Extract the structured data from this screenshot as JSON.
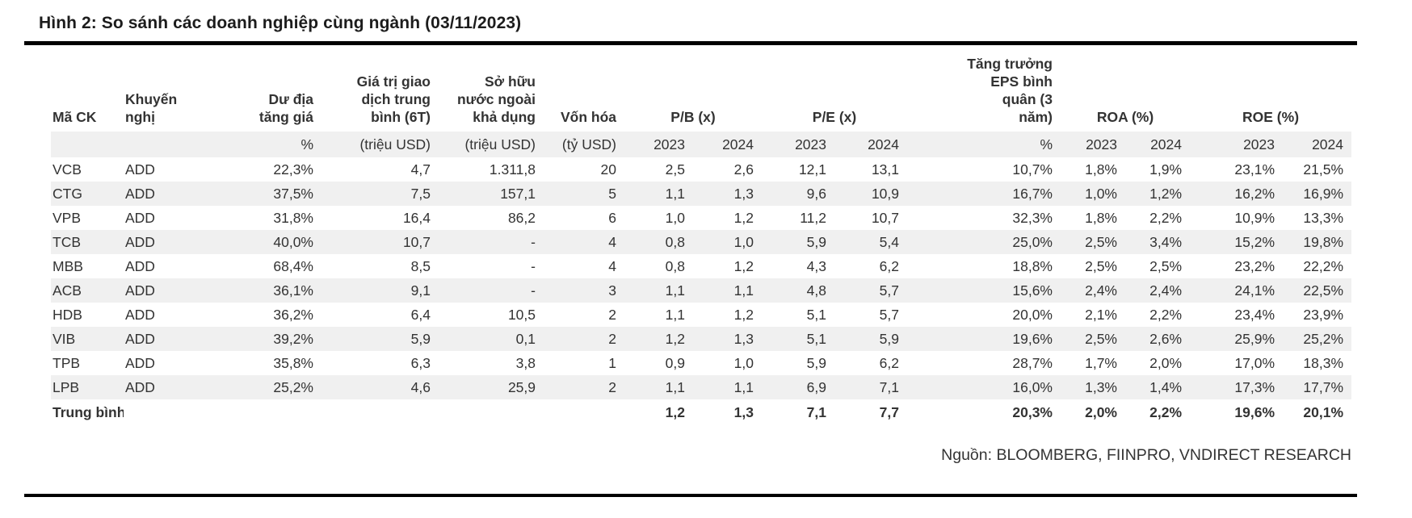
{
  "title": "Hình 2: So sánh các doanh nghiệp cùng ngành (03/11/2023)",
  "colors": {
    "stripe": "#f0f0f0",
    "rule": "#000000",
    "text": "#333333",
    "title": "#1c1c1c"
  },
  "table": {
    "headers": {
      "ticker": "Mã CK",
      "recommendation": "Khuyến\nnghị",
      "upside": "Dư địa\ntăng giá",
      "avg_trading_value": "Giá trị giao\ndịch trung\nbình (6T)",
      "foreign_ownership": "Sở hữu\nnước ngoài\nkhả dụng",
      "market_cap": "Vốn hóa",
      "eps_growth": "Tăng trưởng\nEPS bình\nquân (3\nnăm)"
    },
    "col_groups": {
      "pb": "P/B (x)",
      "pe": "P/E (x)",
      "roa": "ROA (%)",
      "roe": "ROE (%)"
    },
    "units": {
      "upside": "%",
      "avg_trading_value": "(triệu USD)",
      "foreign_ownership": "(triệu USD)",
      "market_cap": "(tỷ USD)",
      "pb_2023": "2023",
      "pb_2024": "2024",
      "pe_2023": "2023",
      "pe_2024": "2024",
      "eps_growth": "%",
      "roa_2023": "2023",
      "roa_2024": "2024",
      "roe_2023": "2023",
      "roe_2024": "2024"
    },
    "rows": [
      [
        "VCB",
        "ADD",
        "22,3%",
        "4,7",
        "1.311,8",
        "20",
        "2,5",
        "2,6",
        "12,1",
        "13,1",
        "10,7%",
        "1,8%",
        "1,9%",
        "23,1%",
        "21,5%"
      ],
      [
        "CTG",
        "ADD",
        "37,5%",
        "7,5",
        "157,1",
        "5",
        "1,1",
        "1,3",
        "9,6",
        "10,9",
        "16,7%",
        "1,0%",
        "1,2%",
        "16,2%",
        "16,9%"
      ],
      [
        "VPB",
        "ADD",
        "31,8%",
        "16,4",
        "86,2",
        "6",
        "1,0",
        "1,2",
        "11,2",
        "10,7",
        "32,3%",
        "1,8%",
        "2,2%",
        "10,9%",
        "13,3%"
      ],
      [
        "TCB",
        "ADD",
        "40,0%",
        "10,7",
        "-",
        "4",
        "0,8",
        "1,0",
        "5,9",
        "5,4",
        "25,0%",
        "2,5%",
        "3,4%",
        "15,2%",
        "19,8%"
      ],
      [
        "MBB",
        "ADD",
        "68,4%",
        "8,5",
        "-",
        "4",
        "0,8",
        "1,2",
        "4,3",
        "6,2",
        "18,8%",
        "2,5%",
        "2,5%",
        "23,2%",
        "22,2%"
      ],
      [
        "ACB",
        "ADD",
        "36,1%",
        "9,1",
        "-",
        "3",
        "1,1",
        "1,1",
        "4,8",
        "5,7",
        "15,6%",
        "2,4%",
        "2,4%",
        "24,1%",
        "22,5%"
      ],
      [
        "HDB",
        "ADD",
        "36,2%",
        "6,4",
        "10,5",
        "2",
        "1,1",
        "1,2",
        "5,1",
        "5,7",
        "20,0%",
        "2,1%",
        "2,2%",
        "23,4%",
        "23,9%"
      ],
      [
        "VIB",
        "ADD",
        "39,2%",
        "5,9",
        "0,1",
        "2",
        "1,2",
        "1,3",
        "5,1",
        "5,9",
        "19,6%",
        "2,5%",
        "2,6%",
        "25,9%",
        "25,2%"
      ],
      [
        "TPB",
        "ADD",
        "35,8%",
        "6,3",
        "3,8",
        "1",
        "0,9",
        "1,0",
        "5,9",
        "6,2",
        "28,7%",
        "1,7%",
        "2,0%",
        "17,0%",
        "18,3%"
      ],
      [
        "LPB",
        "ADD",
        "25,2%",
        "4,6",
        "25,9",
        "2",
        "1,1",
        "1,1",
        "6,9",
        "7,1",
        "16,0%",
        "1,3%",
        "1,4%",
        "17,3%",
        "17,7%"
      ]
    ],
    "average": [
      "Trung bình",
      "",
      "",
      "",
      "",
      "",
      "1,2",
      "1,3",
      "7,1",
      "7,7",
      "20,3%",
      "2,0%",
      "2,2%",
      "19,6%",
      "20,1%"
    ]
  },
  "footer": {
    "source": "Nguồn: BLOOMBERG, FIINPRO, VNDIRECT RESEARCH"
  }
}
